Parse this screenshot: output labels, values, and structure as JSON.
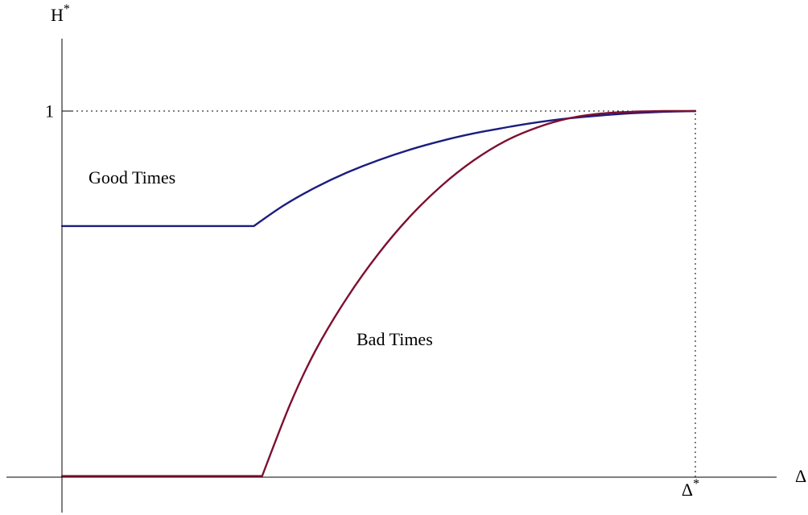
{
  "chart_data": {
    "type": "line",
    "title": "",
    "xlabel": "Δ",
    "ylabel": "H",
    "ylabel_superscript": "*",
    "xlim": [
      0,
      1
    ],
    "ylim": [
      0,
      1.11
    ],
    "grid": false,
    "legend": "none",
    "y_ticks": [
      {
        "value": 1,
        "label": "1"
      }
    ],
    "x_ticks": [
      {
        "value": 1,
        "label": "Δ",
        "superscript": "*"
      }
    ],
    "guides": [
      {
        "orientation": "horizontal",
        "value": 1,
        "from": 0,
        "to": 1
      },
      {
        "orientation": "vertical",
        "value": 1,
        "from": 0,
        "to": 1
      }
    ],
    "series": [
      {
        "name": "Good Times",
        "color": "#1b1d80",
        "x": [
          0,
          0.303,
          0.35,
          0.4,
          0.45,
          0.5,
          0.55,
          0.6,
          0.65,
          0.7,
          0.75,
          0.8,
          0.85,
          0.9,
          0.95,
          1.0
        ],
        "y": [
          0.686,
          0.686,
          0.742,
          0.791,
          0.832,
          0.866,
          0.895,
          0.919,
          0.939,
          0.955,
          0.969,
          0.98,
          0.988,
          0.994,
          0.998,
          1.0
        ]
      },
      {
        "name": "Bad Times",
        "color": "#7e1030",
        "x": [
          0,
          0.316,
          0.36,
          0.4,
          0.45,
          0.5,
          0.55,
          0.6,
          0.65,
          0.7,
          0.75,
          0.8,
          0.85,
          0.9,
          0.95,
          1.0
        ],
        "y": [
          0.003,
          0.003,
          0.198,
          0.345,
          0.49,
          0.611,
          0.713,
          0.797,
          0.865,
          0.918,
          0.955,
          0.98,
          0.993,
          0.998,
          1.0,
          1.0
        ]
      }
    ]
  }
}
